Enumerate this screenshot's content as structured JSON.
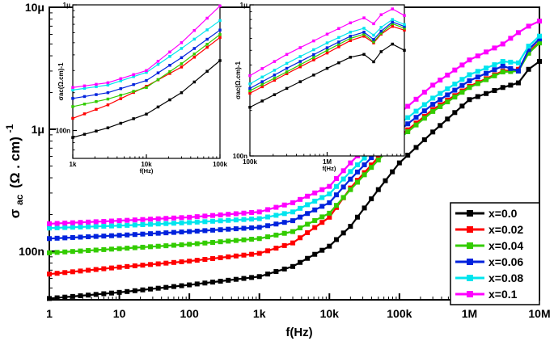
{
  "chart_data": [
    {
      "type": "line",
      "role": "main",
      "xlabel": "f(Hz)",
      "ylabel": "σ ac (Ω . cm) -1",
      "ylabel_parts": {
        "main": "σ",
        "sub": "ac",
        "unit": "(Ω . cm)",
        "sup": "-1"
      },
      "x_scale": "log",
      "y_scale": "log",
      "xlim": [
        1,
        10000000
      ],
      "ylim": [
        4e-08,
        1e-05
      ],
      "x_ticks": [
        {
          "v": 1,
          "label": "1"
        },
        {
          "v": 10,
          "label": "10"
        },
        {
          "v": 100,
          "label": "100"
        },
        {
          "v": 1000,
          "label": "1k"
        },
        {
          "v": 10000,
          "label": "10k"
        },
        {
          "v": 100000,
          "label": "100k"
        },
        {
          "v": 1000000,
          "label": "1M"
        },
        {
          "v": 10000000,
          "label": "10M"
        }
      ],
      "y_ticks": [
        {
          "v": 1e-07,
          "label": "100n"
        },
        {
          "v": 1e-06,
          "label": "1μ"
        },
        {
          "v": 1e-05,
          "label": "10μ"
        }
      ],
      "grid": false,
      "legend_position": "bottom-right",
      "series": [
        {
          "name": "x=0.0",
          "color": "#000000",
          "points": [
            [
              1,
              4.1e-08
            ],
            [
              10,
              4.6e-08
            ],
            [
              100,
              5.3e-08
            ],
            [
              1000,
              6.2e-08
            ],
            [
              3000,
              7.5e-08
            ],
            [
              10000,
              1.1e-07
            ],
            [
              20000,
              1.6e-07
            ],
            [
              50000,
              3.2e-07
            ],
            [
              100000,
              5.3e-07
            ],
            [
              300000,
              9.5e-07
            ],
            [
              1000000,
              1.75e-06
            ],
            [
              3000000,
              2.2e-06
            ],
            [
              5000000,
              2.4e-06
            ],
            [
              7000000,
              3.1e-06
            ],
            [
              10000000,
              3.6e-06
            ]
          ]
        },
        {
          "name": "x=0.02",
          "color": "#ff0000",
          "points": [
            [
              1,
              6.5e-08
            ],
            [
              10,
              7.4e-08
            ],
            [
              100,
              8.3e-08
            ],
            [
              1000,
              9.6e-08
            ],
            [
              3000,
              1.17e-07
            ],
            [
              10000,
              1.9e-07
            ],
            [
              20000,
              3.3e-07
            ],
            [
              50000,
              5.9e-07
            ],
            [
              100000,
              8.7e-07
            ],
            [
              300000,
              1.45e-06
            ],
            [
              1000000,
              2.25e-06
            ],
            [
              3000000,
              3e-06
            ],
            [
              5000000,
              3.1e-06
            ],
            [
              7000000,
              4.3e-06
            ],
            [
              10000000,
              5.2e-06
            ]
          ]
        },
        {
          "name": "x=0.04",
          "color": "#33cc00",
          "points": [
            [
              1,
              9.7e-08
            ],
            [
              10,
              1.05e-07
            ],
            [
              100,
              1.14e-07
            ],
            [
              1000,
              1.27e-07
            ],
            [
              3000,
              1.45e-07
            ],
            [
              10000,
              2.05e-07
            ],
            [
              20000,
              3.2e-07
            ],
            [
              50000,
              5.6e-07
            ],
            [
              100000,
              8.4e-07
            ],
            [
              300000,
              1.4e-06
            ],
            [
              1000000,
              2.2e-06
            ],
            [
              3000000,
              2.95e-06
            ],
            [
              5000000,
              3e-06
            ],
            [
              7000000,
              4.2e-06
            ],
            [
              10000000,
              5.1e-06
            ]
          ]
        },
        {
          "name": "x=0.06",
          "color": "#0022dd",
          "points": [
            [
              1,
              1.27e-07
            ],
            [
              10,
              1.35e-07
            ],
            [
              100,
              1.45e-07
            ],
            [
              1000,
              1.57e-07
            ],
            [
              3000,
              1.78e-07
            ],
            [
              10000,
              2.5e-07
            ],
            [
              20000,
              3.9e-07
            ],
            [
              50000,
              6.7e-07
            ],
            [
              100000,
              9.8e-07
            ],
            [
              300000,
              1.6e-06
            ],
            [
              1000000,
              2.5e-06
            ],
            [
              3000000,
              3.3e-06
            ],
            [
              5000000,
              3e-06
            ],
            [
              7000000,
              4.5e-06
            ],
            [
              10000000,
              5.5e-06
            ]
          ]
        },
        {
          "name": "x=0.08",
          "color": "#00e5ee",
          "points": [
            [
              1,
              1.55e-07
            ],
            [
              10,
              1.62e-07
            ],
            [
              100,
              1.72e-07
            ],
            [
              1000,
              1.85e-07
            ],
            [
              3000,
              2.1e-07
            ],
            [
              10000,
              2.95e-07
            ],
            [
              20000,
              4.5e-07
            ],
            [
              50000,
              7.5e-07
            ],
            [
              100000,
              1.1e-06
            ],
            [
              300000,
              1.8e-06
            ],
            [
              1000000,
              2.8e-06
            ],
            [
              3000000,
              3.6e-06
            ],
            [
              5000000,
              3.5e-06
            ],
            [
              7000000,
              4.8e-06
            ],
            [
              10000000,
              5.8e-06
            ]
          ]
        },
        {
          "name": "x=0.1",
          "color": "#ff00ff",
          "points": [
            [
              1,
              1.68e-07
            ],
            [
              10,
              1.78e-07
            ],
            [
              100,
              1.9e-07
            ],
            [
              1000,
              2.1e-07
            ],
            [
              3000,
              2.5e-07
            ],
            [
              10000,
              3.4e-07
            ],
            [
              20000,
              5.3e-07
            ],
            [
              50000,
              9e-07
            ],
            [
              100000,
              1.35e-06
            ],
            [
              300000,
              2.3e-06
            ],
            [
              1000000,
              3.7e-06
            ],
            [
              3000000,
              5e-06
            ],
            [
              5000000,
              6.2e-06
            ],
            [
              7000000,
              7e-06
            ],
            [
              10000000,
              7.7e-06
            ]
          ]
        }
      ]
    },
    {
      "type": "line",
      "role": "inset-left",
      "xlabel": "f(Hz)",
      "ylabel": "σac(Ω.cm)-1",
      "x_scale": "log",
      "y_scale": "log",
      "xlim": [
        1000,
        100000
      ],
      "ylim": [
        6e-08,
        1e-06
      ],
      "x_ticks": [
        {
          "v": 1000,
          "label": "1k"
        },
        {
          "v": 10000,
          "label": "10k"
        },
        {
          "v": 100000,
          "label": "100k"
        }
      ],
      "y_ticks": [
        {
          "v": 1e-07,
          "label": "100n"
        },
        {
          "v": 1e-06,
          "label": "1μ"
        }
      ],
      "series": [
        {
          "name": "x=0.0",
          "color": "#000000",
          "points": [
            [
              1000,
              8.8e-08
            ],
            [
              3000,
              1.05e-07
            ],
            [
              10000,
              1.35e-07
            ],
            [
              30000,
              2e-07
            ],
            [
              100000,
              3.6e-07
            ]
          ]
        },
        {
          "name": "x=0.02",
          "color": "#ff0000",
          "points": [
            [
              1000,
              1.25e-07
            ],
            [
              3000,
              1.6e-07
            ],
            [
              10000,
              2.25e-07
            ],
            [
              30000,
              3.2e-07
            ],
            [
              100000,
              5.5e-07
            ]
          ]
        },
        {
          "name": "x=0.04",
          "color": "#33cc00",
          "points": [
            [
              1000,
              1.55e-07
            ],
            [
              3000,
              1.78e-07
            ],
            [
              10000,
              2.2e-07
            ],
            [
              30000,
              3.4e-07
            ],
            [
              100000,
              5.8e-07
            ]
          ]
        },
        {
          "name": "x=0.06",
          "color": "#0022dd",
          "points": [
            [
              1000,
              1.8e-07
            ],
            [
              3000,
              2e-07
            ],
            [
              10000,
              2.5e-07
            ],
            [
              30000,
              3.8e-07
            ],
            [
              100000,
              6.3e-07
            ]
          ]
        },
        {
          "name": "x=0.08",
          "color": "#00e5ee",
          "points": [
            [
              1000,
              2.1e-07
            ],
            [
              3000,
              2.3e-07
            ],
            [
              10000,
              2.9e-07
            ],
            [
              30000,
              4.5e-07
            ],
            [
              100000,
              7.5e-07
            ]
          ]
        },
        {
          "name": "x=0.1",
          "color": "#ff00ff",
          "points": [
            [
              1000,
              2.2e-07
            ],
            [
              3000,
              2.4e-07
            ],
            [
              10000,
              3e-07
            ],
            [
              30000,
              5e-07
            ],
            [
              100000,
              9.8e-07
            ]
          ]
        }
      ]
    },
    {
      "type": "line",
      "role": "inset-right",
      "xlabel": "f(Hz)",
      "ylabel": "σac(Ω.cm)-1",
      "x_scale": "log",
      "y_scale": "log",
      "xlim": [
        100000,
        10000000
      ],
      "ylim": [
        1e-07,
        1e-06
      ],
      "x_ticks": [
        {
          "v": 100000,
          "label": "100k"
        },
        {
          "v": 1000000,
          "label": "1M"
        }
      ],
      "y_ticks": [
        {
          "v": 1e-07,
          "label": "100n"
        },
        {
          "v": 1e-06,
          "label": "1μ"
        }
      ],
      "series": [
        {
          "name": "x=0.0",
          "color": "#000000",
          "points": [
            [
              100000,
              2.1e-07
            ],
            [
              300000,
              2.8e-07
            ],
            [
              1000000,
              3.8e-07
            ],
            [
              2000000,
              4.5e-07
            ],
            [
              3000000,
              4.7e-07
            ],
            [
              4000000,
              4.2e-07
            ],
            [
              5000000,
              4.9e-07
            ],
            [
              7000000,
              5.5e-07
            ],
            [
              10000000,
              5e-07
            ]
          ]
        },
        {
          "name": "x=0.02",
          "color": "#ff0000",
          "points": [
            [
              100000,
              2.6e-07
            ],
            [
              300000,
              3.5e-07
            ],
            [
              1000000,
              4.8e-07
            ],
            [
              2000000,
              5.8e-07
            ],
            [
              3000000,
              6.2e-07
            ],
            [
              4000000,
              5.6e-07
            ],
            [
              5000000,
              6.4e-07
            ],
            [
              7000000,
              7.2e-07
            ],
            [
              10000000,
              6.8e-07
            ]
          ]
        },
        {
          "name": "x=0.04",
          "color": "#33cc00",
          "points": [
            [
              100000,
              2.7e-07
            ],
            [
              300000,
              3.6e-07
            ],
            [
              1000000,
              5e-07
            ],
            [
              2000000,
              6e-07
            ],
            [
              3000000,
              6.4e-07
            ],
            [
              4000000,
              5.7e-07
            ],
            [
              5000000,
              6.5e-07
            ],
            [
              7000000,
              7.5e-07
            ],
            [
              10000000,
              7e-07
            ]
          ]
        },
        {
          "name": "x=0.06",
          "color": "#0022dd",
          "points": [
            [
              100000,
              2.8e-07
            ],
            [
              300000,
              3.8e-07
            ],
            [
              1000000,
              5.2e-07
            ],
            [
              2000000,
              6.2e-07
            ],
            [
              3000000,
              6.6e-07
            ],
            [
              4000000,
              5.9e-07
            ],
            [
              5000000,
              6.7e-07
            ],
            [
              7000000,
              7.7e-07
            ],
            [
              10000000,
              7.2e-07
            ]
          ]
        },
        {
          "name": "x=0.08",
          "color": "#00e5ee",
          "points": [
            [
              100000,
              3e-07
            ],
            [
              300000,
              4.1e-07
            ],
            [
              1000000,
              5.6e-07
            ],
            [
              2000000,
              6.6e-07
            ],
            [
              3000000,
              7e-07
            ],
            [
              4000000,
              6.3e-07
            ],
            [
              5000000,
              7.1e-07
            ],
            [
              7000000,
              8e-07
            ],
            [
              10000000,
              7.4e-07
            ]
          ]
        },
        {
          "name": "x=0.1",
          "color": "#ff00ff",
          "points": [
            [
              100000,
              3.4e-07
            ],
            [
              300000,
              4.7e-07
            ],
            [
              1000000,
              6.4e-07
            ],
            [
              2000000,
              7.6e-07
            ],
            [
              3000000,
              8.2e-07
            ],
            [
              4000000,
              7.5e-07
            ],
            [
              5000000,
              8.6e-07
            ],
            [
              7000000,
              9.4e-07
            ],
            [
              10000000,
              8.5e-07
            ]
          ]
        }
      ]
    }
  ]
}
